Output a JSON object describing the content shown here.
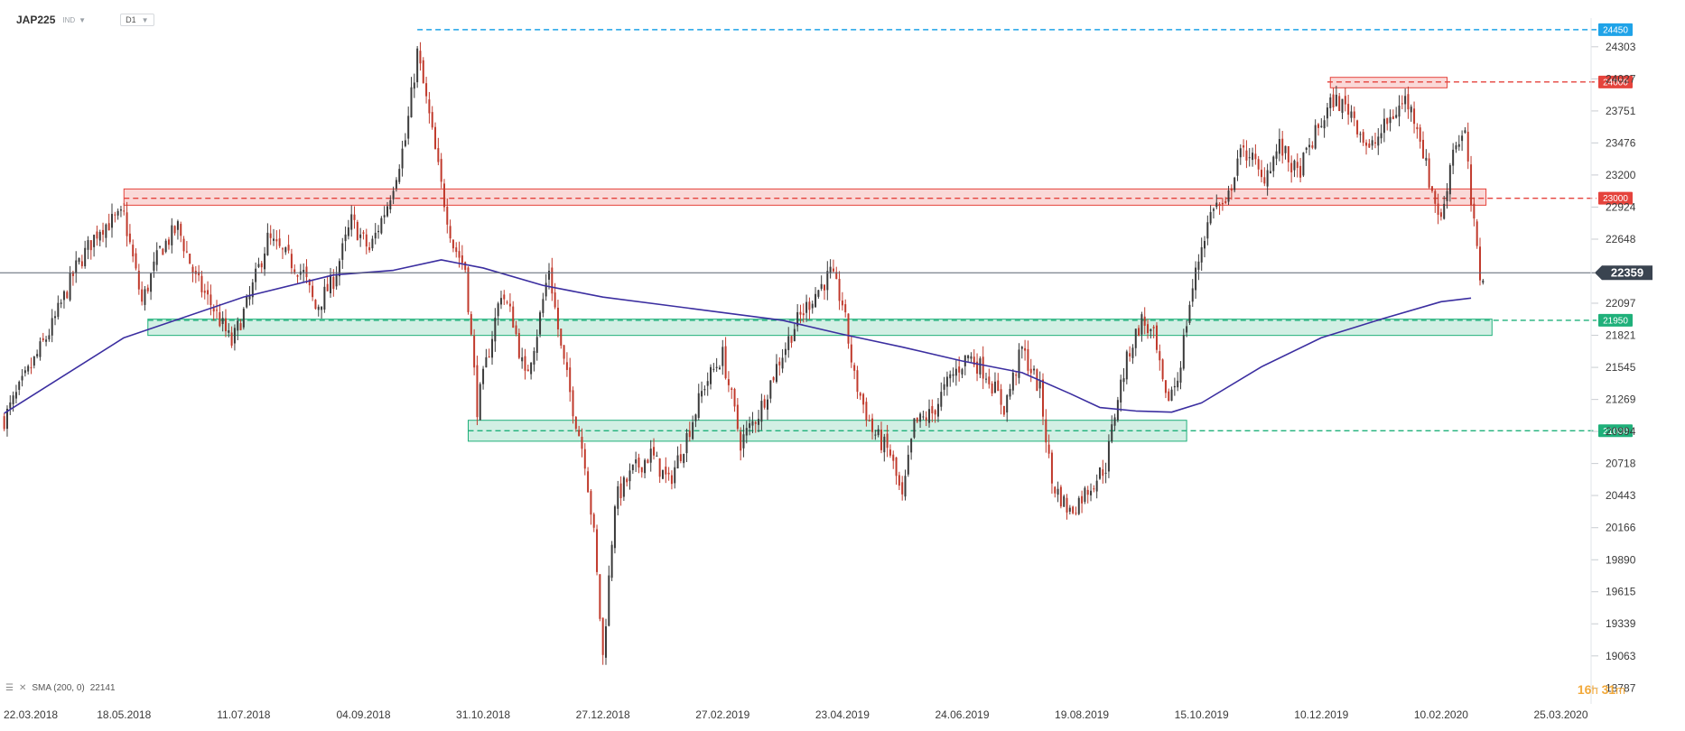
{
  "header": {
    "symbol": "JAP225",
    "instrument_type": "IND",
    "timeframe": "D1"
  },
  "indicator": {
    "label": "SMA (200, 0)",
    "value": "22141"
  },
  "countdown": {
    "hours": "16",
    "hours_unit": "h",
    "minutes": "31",
    "minutes_unit": "m"
  },
  "colors": {
    "up_candle": "#3a3a3a",
    "down_candle": "#c0392b",
    "sma_line": "#3b2ea0",
    "resistance": "#e5433c",
    "support": "#1fb07a",
    "top_level": "#1fa3e8",
    "last_price": "#3a4450"
  },
  "chart_data": {
    "type": "candlestick",
    "ylim": [
      18650,
      24550
    ],
    "y_ticks": [
      "24303",
      "24027",
      "23751",
      "23476",
      "23200",
      "22924",
      "22648",
      "22097",
      "21821",
      "21545",
      "21269",
      "20994",
      "20718",
      "20443",
      "20166",
      "19890",
      "19615",
      "19339",
      "19063",
      "18787"
    ],
    "x_tick_labels": [
      "22.03.2018",
      "18.05.2018",
      "11.07.2018",
      "04.09.2018",
      "31.10.2018",
      "27.12.2018",
      "27.02.2019",
      "23.04.2019",
      "24.06.2019",
      "19.08.2019",
      "15.10.2019",
      "10.12.2019",
      "10.02.2020",
      "25.03.2020"
    ],
    "x_tick_positions": [
      0,
      40,
      80,
      120,
      160,
      200,
      240,
      280,
      320,
      360,
      400,
      440,
      480,
      520
    ],
    "last_price": "22359",
    "levels": [
      {
        "label": "24450",
        "value": 24450,
        "type": "top",
        "start_index": 138
      },
      {
        "label": "24000",
        "value": 24000,
        "type": "resistance",
        "start_index": 442
      },
      {
        "label": "23000",
        "value": 23000,
        "type": "resistance",
        "start_index": 40
      },
      {
        "label": "21950",
        "value": 21950,
        "type": "support",
        "start_index": 48
      },
      {
        "label": "21000",
        "value": 21000,
        "type": "support",
        "start_index": 155
      }
    ],
    "zones": [
      {
        "type": "resistance",
        "from_index": 40,
        "to_index": 495,
        "low": 22940,
        "high": 23080
      },
      {
        "type": "resistance",
        "from_index": 443,
        "to_index": 482,
        "low": 23950,
        "high": 24040
      },
      {
        "type": "support",
        "from_index": 48,
        "to_index": 497,
        "low": 21820,
        "high": 21960
      },
      {
        "type": "support",
        "from_index": 155,
        "to_index": 395,
        "low": 20910,
        "high": 21090
      }
    ],
    "close_path": [
      [
        0,
        21100
      ],
      [
        8,
        21500
      ],
      [
        16,
        21900
      ],
      [
        24,
        22400
      ],
      [
        32,
        22750
      ],
      [
        40,
        22850
      ],
      [
        46,
        22100
      ],
      [
        52,
        22550
      ],
      [
        58,
        22750
      ],
      [
        64,
        22300
      ],
      [
        70,
        22050
      ],
      [
        76,
        21750
      ],
      [
        82,
        22150
      ],
      [
        88,
        22650
      ],
      [
        94,
        22500
      ],
      [
        100,
        22350
      ],
      [
        104,
        22050
      ],
      [
        110,
        22300
      ],
      [
        116,
        22800
      ],
      [
        122,
        22550
      ],
      [
        128,
        22950
      ],
      [
        134,
        23500
      ],
      [
        138,
        24250
      ],
      [
        142,
        23700
      ],
      [
        146,
        23100
      ],
      [
        150,
        22600
      ],
      [
        154,
        22400
      ],
      [
        158,
        21200
      ],
      [
        162,
        21700
      ],
      [
        166,
        22200
      ],
      [
        170,
        21950
      ],
      [
        174,
        21450
      ],
      [
        178,
        21850
      ],
      [
        182,
        22400
      ],
      [
        186,
        21700
      ],
      [
        190,
        21200
      ],
      [
        194,
        20750
      ],
      [
        197,
        20100
      ],
      [
        200,
        19050
      ],
      [
        204,
        20400
      ],
      [
        210,
        20650
      ],
      [
        216,
        20800
      ],
      [
        222,
        20550
      ],
      [
        228,
        20950
      ],
      [
        234,
        21400
      ],
      [
        240,
        21650
      ],
      [
        246,
        20900
      ],
      [
        252,
        21150
      ],
      [
        258,
        21550
      ],
      [
        264,
        21900
      ],
      [
        270,
        22150
      ],
      [
        276,
        22350
      ],
      [
        280,
        22100
      ],
      [
        284,
        21450
      ],
      [
        290,
        21000
      ],
      [
        296,
        20800
      ],
      [
        300,
        20400
      ],
      [
        304,
        21050
      ],
      [
        310,
        21150
      ],
      [
        316,
        21450
      ],
      [
        322,
        21650
      ],
      [
        328,
        21500
      ],
      [
        334,
        21200
      ],
      [
        340,
        21700
      ],
      [
        346,
        21350
      ],
      [
        350,
        20550
      ],
      [
        356,
        20300
      ],
      [
        362,
        20500
      ],
      [
        368,
        20700
      ],
      [
        372,
        21300
      ],
      [
        376,
        21700
      ],
      [
        380,
        21950
      ],
      [
        384,
        21800
      ],
      [
        388,
        21250
      ],
      [
        392,
        21450
      ],
      [
        396,
        22100
      ],
      [
        400,
        22600
      ],
      [
        404,
        22950
      ],
      [
        408,
        22900
      ],
      [
        412,
        23350
      ],
      [
        416,
        23400
      ],
      [
        420,
        23150
      ],
      [
        426,
        23450
      ],
      [
        432,
        23200
      ],
      [
        438,
        23550
      ],
      [
        444,
        23850
      ],
      [
        450,
        23750
      ],
      [
        456,
        23400
      ],
      [
        462,
        23650
      ],
      [
        468,
        23850
      ],
      [
        472,
        23650
      ],
      [
        476,
        23150
      ],
      [
        480,
        22800
      ],
      [
        484,
        23450
      ],
      [
        488,
        23550
      ],
      [
        490,
        22950
      ],
      [
        493,
        22330
      ],
      [
        494,
        22359
      ]
    ],
    "sma_200": [
      [
        0,
        21150
      ],
      [
        40,
        21800
      ],
      [
        80,
        22150
      ],
      [
        110,
        22340
      ],
      [
        130,
        22380
      ],
      [
        146,
        22470
      ],
      [
        160,
        22400
      ],
      [
        180,
        22250
      ],
      [
        200,
        22150
      ],
      [
        230,
        22050
      ],
      [
        260,
        21950
      ],
      [
        280,
        21830
      ],
      [
        300,
        21720
      ],
      [
        320,
        21600
      ],
      [
        340,
        21500
      ],
      [
        356,
        21320
      ],
      [
        366,
        21200
      ],
      [
        378,
        21170
      ],
      [
        390,
        21160
      ],
      [
        400,
        21240
      ],
      [
        420,
        21550
      ],
      [
        440,
        21800
      ],
      [
        460,
        21960
      ],
      [
        480,
        22110
      ],
      [
        490,
        22141
      ]
    ]
  }
}
